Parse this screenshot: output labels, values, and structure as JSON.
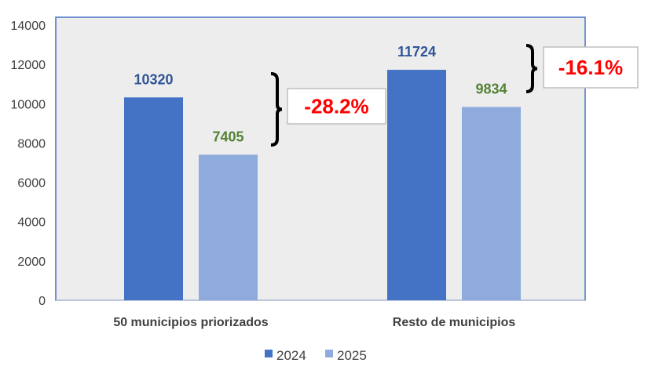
{
  "chart_data": {
    "type": "bar",
    "categories": [
      "50 municipios priorizados",
      "Resto de municipios"
    ],
    "series": [
      {
        "name": "2024",
        "values": [
          10320,
          11724
        ],
        "color": "#4472C4",
        "label_color": "#2F5597"
      },
      {
        "name": "2025",
        "values": [
          7405,
          9834
        ],
        "color": "#8FAADC",
        "label_color": "#548235"
      }
    ],
    "ylim": [
      0,
      14000
    ],
    "yticks": [
      0,
      2000,
      4000,
      6000,
      8000,
      10000,
      12000,
      14000
    ],
    "grid": false,
    "legend": "bottom",
    "plot_background": "#EDEDED",
    "plot_border_color": "#4472C4",
    "annotations": [
      {
        "text": "-28.2%",
        "category": "50 municipios priorizados",
        "color": "#FF0000"
      },
      {
        "text": "-16.1%",
        "category": "Resto de municipios",
        "color": "#FF0000"
      }
    ]
  }
}
